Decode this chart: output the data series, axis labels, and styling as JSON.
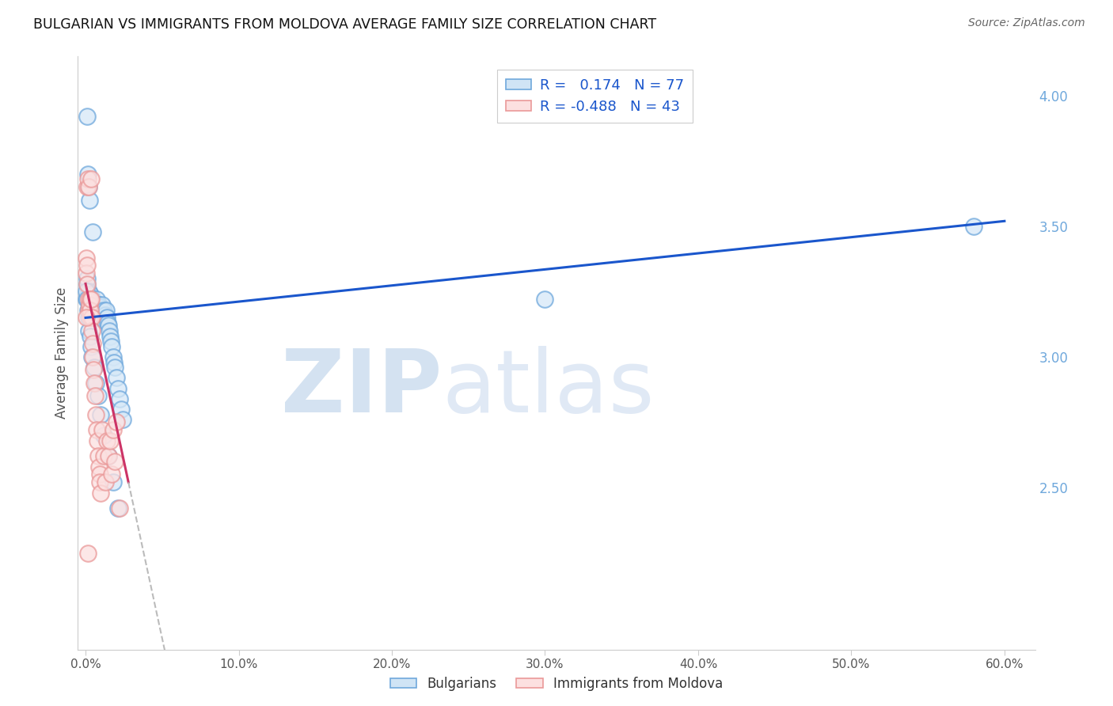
{
  "title": "BULGARIAN VS IMMIGRANTS FROM MOLDOVA AVERAGE FAMILY SIZE CORRELATION CHART",
  "source": "Source: ZipAtlas.com",
  "ylabel": "Average Family Size",
  "ylim": [
    1.88,
    4.15
  ],
  "xlim": [
    -0.5,
    62
  ],
  "yticks_right": [
    2.5,
    3.0,
    3.5,
    4.0
  ],
  "xtick_vals": [
    0,
    10,
    20,
    30,
    40,
    50,
    60
  ],
  "blue_R": 0.174,
  "blue_N": 77,
  "pink_R": -0.488,
  "pink_N": 43,
  "blue_color": "#6fa8dc",
  "pink_color": "#ea9999",
  "blue_line_color": "#1a56cc",
  "pink_line_color": "#cc3366",
  "grid_color": "#c8c8c8",
  "watermark_zip_color": "#c5d8f0",
  "watermark_atlas_color": "#d0dff5",
  "title_color": "#111111",
  "source_color": "#666666",
  "legend_label_blue": "Bulgarians",
  "legend_label_pink": "Immigrants from Moldova",
  "blue_line_x0": 0,
  "blue_line_y0": 3.15,
  "blue_line_x1": 60,
  "blue_line_y1": 3.52,
  "pink_line_x0": 0,
  "pink_line_y0": 3.28,
  "pink_line_x1": 2.8,
  "pink_line_y1": 2.52,
  "pink_dash_x1": 20,
  "blue_scatter_x": [
    0.05,
    0.08,
    0.1,
    0.12,
    0.15,
    0.18,
    0.2,
    0.22,
    0.25,
    0.28,
    0.3,
    0.32,
    0.35,
    0.38,
    0.4,
    0.42,
    0.45,
    0.48,
    0.5,
    0.52,
    0.55,
    0.58,
    0.6,
    0.65,
    0.68,
    0.7,
    0.75,
    0.78,
    0.8,
    0.85,
    0.88,
    0.9,
    0.95,
    0.98,
    1.0,
    1.05,
    1.1,
    1.15,
    1.2,
    1.25,
    1.3,
    1.35,
    1.4,
    1.45,
    1.5,
    1.55,
    1.6,
    1.65,
    1.7,
    1.8,
    1.85,
    1.9,
    2.0,
    2.1,
    2.2,
    2.3,
    2.4,
    0.06,
    0.1,
    0.14,
    0.18,
    0.22,
    0.28,
    0.35,
    0.42,
    0.55,
    0.68,
    0.8,
    1.0,
    1.2,
    1.5,
    1.8,
    2.1,
    30.0,
    58.0,
    0.25,
    0.45
  ],
  "blue_scatter_y": [
    3.22,
    3.28,
    3.92,
    3.3,
    3.7,
    3.25,
    3.18,
    3.65,
    3.2,
    3.16,
    3.2,
    3.24,
    3.18,
    3.22,
    3.2,
    3.16,
    3.22,
    3.18,
    3.2,
    3.15,
    3.17,
    3.19,
    3.18,
    3.2,
    3.15,
    3.22,
    3.18,
    3.16,
    3.2,
    3.18,
    3.2,
    3.17,
    3.19,
    3.16,
    3.18,
    3.15,
    3.2,
    3.16,
    3.18,
    3.14,
    3.16,
    3.18,
    3.15,
    3.13,
    3.12,
    3.1,
    3.08,
    3.06,
    3.04,
    3.0,
    2.98,
    2.96,
    2.92,
    2.88,
    2.84,
    2.8,
    2.76,
    3.25,
    3.22,
    3.18,
    3.15,
    3.1,
    3.08,
    3.04,
    3.0,
    2.96,
    2.9,
    2.85,
    2.78,
    2.7,
    2.62,
    2.52,
    2.42,
    3.22,
    3.5,
    3.6,
    3.48
  ],
  "pink_scatter_x": [
    0.03,
    0.05,
    0.08,
    0.1,
    0.12,
    0.15,
    0.18,
    0.2,
    0.22,
    0.25,
    0.28,
    0.3,
    0.32,
    0.35,
    0.38,
    0.4,
    0.42,
    0.45,
    0.48,
    0.5,
    0.55,
    0.6,
    0.65,
    0.7,
    0.75,
    0.8,
    0.85,
    0.9,
    0.95,
    1.0,
    1.1,
    1.2,
    1.3,
    1.4,
    1.5,
    1.6,
    1.7,
    1.8,
    1.9,
    2.0,
    2.2,
    0.06,
    0.14
  ],
  "pink_scatter_y": [
    3.38,
    3.32,
    3.35,
    3.28,
    3.65,
    3.68,
    3.22,
    3.18,
    3.65,
    3.2,
    3.15,
    3.22,
    3.18,
    3.68,
    3.22,
    3.15,
    3.1,
    3.05,
    3.0,
    2.95,
    2.9,
    2.85,
    2.78,
    2.72,
    2.68,
    2.62,
    2.58,
    2.55,
    2.52,
    2.48,
    2.72,
    2.62,
    2.52,
    2.68,
    2.62,
    2.68,
    2.55,
    2.72,
    2.6,
    2.75,
    2.42,
    3.15,
    2.25
  ]
}
